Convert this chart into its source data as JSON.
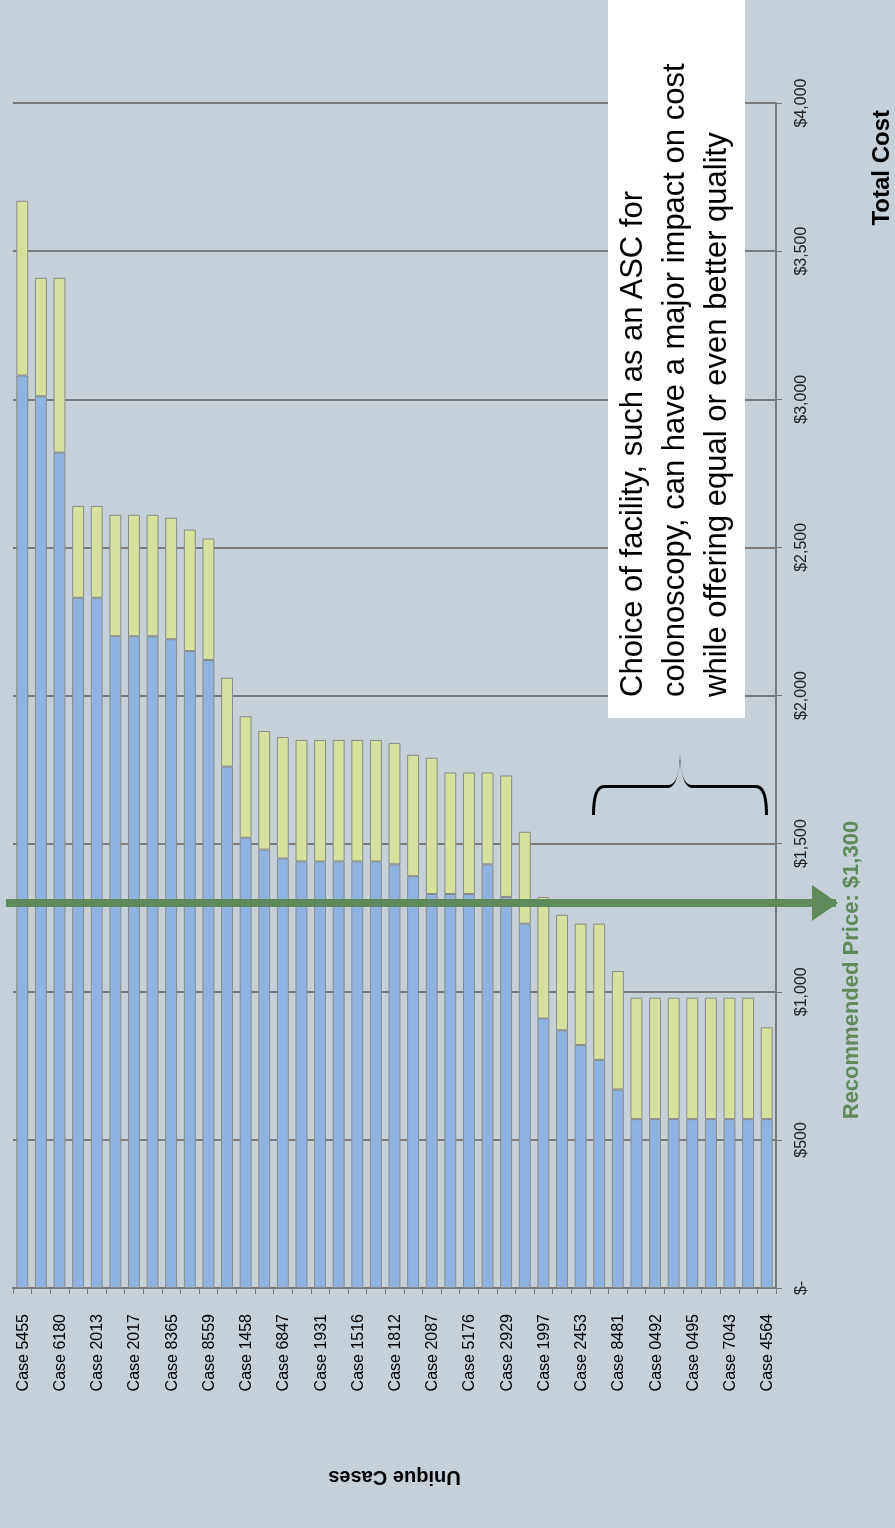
{
  "chart_data": {
    "type": "bar",
    "stacked": true,
    "xlabel": "Unique Cases",
    "ylabel": "Total Cost",
    "categories": [
      "Case 5455",
      null,
      "Case 6180",
      null,
      "Case 2013",
      null,
      "Case 2017",
      null,
      "Case 8365",
      null,
      "Case 8559",
      null,
      "Case 1458",
      null,
      "Case 6847",
      null,
      "Case 1931",
      null,
      "Case 1516",
      null,
      "Case 1812",
      null,
      "Case 2087",
      null,
      "Case 5176",
      null,
      "Case 2929",
      null,
      "Case 1997",
      null,
      "Case 2453",
      null,
      "Case 8481",
      null,
      "Case 0492",
      null,
      "Case 0495",
      null,
      "Case 7043",
      null,
      "Case 4564"
    ],
    "series": [
      {
        "color": "#8fb3e0",
        "values": [
          3080,
          3010,
          2820,
          2330,
          2330,
          2200,
          2200,
          2200,
          2190,
          2150,
          2120,
          1760,
          1520,
          1480,
          1450,
          1440,
          1440,
          1440,
          1440,
          1440,
          1430,
          1390,
          1330,
          1330,
          1330,
          1430,
          1320,
          1230,
          910,
          870,
          820,
          770,
          670,
          570,
          570,
          570,
          570,
          570,
          570,
          570,
          570
        ]
      },
      {
        "color": "#d5e19c",
        "values": [
          590,
          400,
          590,
          310,
          310,
          410,
          410,
          410,
          410,
          410,
          410,
          300,
          410,
          400,
          410,
          410,
          410,
          410,
          410,
          410,
          410,
          410,
          460,
          410,
          410,
          310,
          410,
          310,
          410,
          390,
          410,
          460,
          400,
          410,
          410,
          410,
          410,
          410,
          410,
          410,
          310
        ]
      }
    ],
    "ylim": [
      0,
      4000
    ],
    "yticks": [
      {
        "value": 0,
        "label": "$-"
      },
      {
        "value": 500,
        "label": "$500"
      },
      {
        "value": 1000,
        "label": "$1,000"
      },
      {
        "value": 1500,
        "label": "$1,500"
      },
      {
        "value": 2000,
        "label": "$2,000"
      },
      {
        "value": 2500,
        "label": "$2,500"
      },
      {
        "value": 3000,
        "label": "$3,000"
      },
      {
        "value": 3500,
        "label": "$3,500"
      },
      {
        "value": 4000,
        "label": "$4,000"
      }
    ],
    "grid": "y",
    "ref_lines": [
      {
        "axis": "y",
        "value": 1300,
        "label": "Recommended Price: $1,300",
        "color": "#5f8b5c"
      }
    ],
    "annotations": [
      "Choice of facility, such as an ASC for colonoscopy, can have a major impact on cost while offering equal or even better quality"
    ]
  }
}
